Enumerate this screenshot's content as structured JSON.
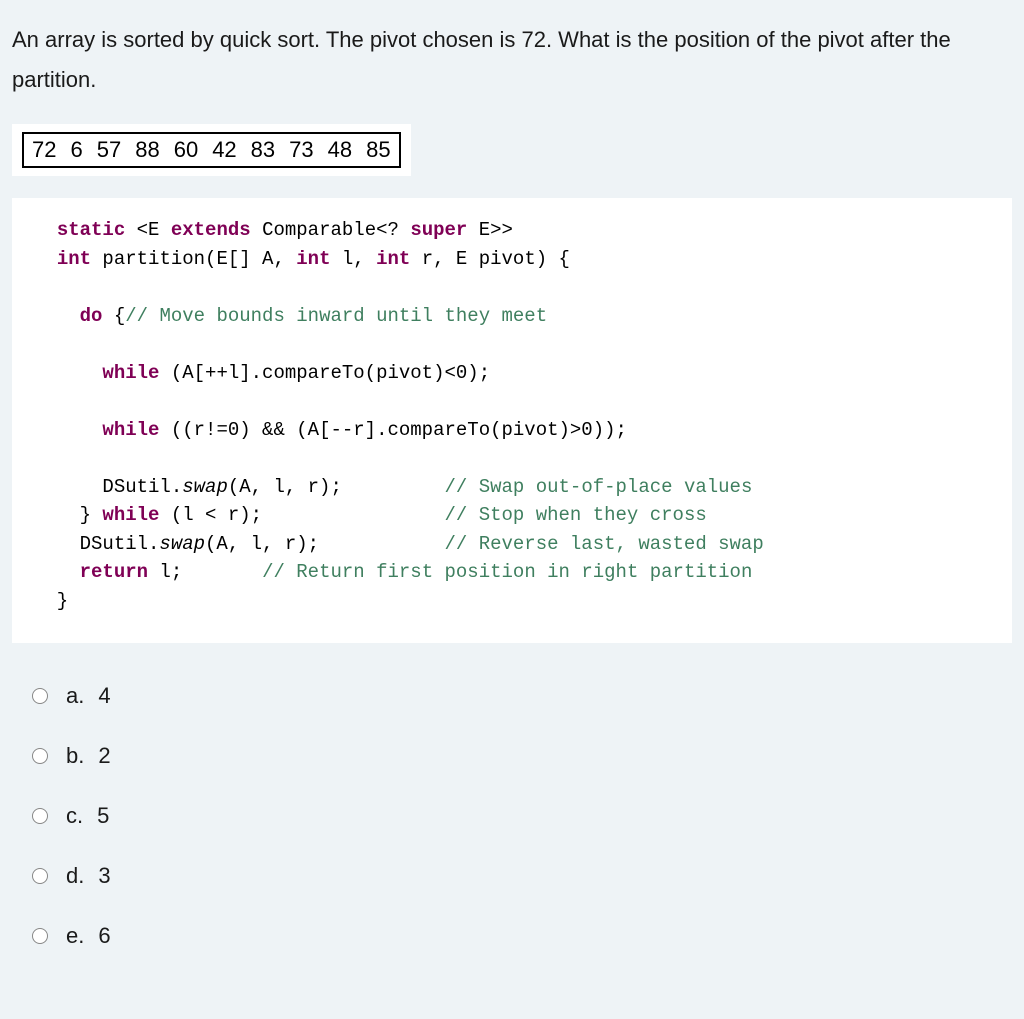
{
  "question": {
    "text": "An array is sorted by quick sort. The pivot chosen is 72. What is the position of the pivot after the partition."
  },
  "array": {
    "values": [
      "72",
      "6",
      "57",
      "88",
      "60",
      "42",
      "83",
      "73",
      "48",
      "85"
    ]
  },
  "code": {
    "line1_kw1": "static",
    "line1_generic": " <E ",
    "line1_kw2": "extends",
    "line1_rest": " Comparable<? ",
    "line1_kw3": "super",
    "line1_end": " E>>",
    "line2_kw": "int",
    "line2_rest": " partition(E[] A, ",
    "line2_kw2": "int",
    "line2_mid": " l, ",
    "line2_kw3": "int",
    "line2_end": " r, E pivot) {",
    "line4_kw": "do",
    "line4_rest": " {",
    "line4_cmt": "// Move bounds inward until they meet",
    "line6_kw": "while",
    "line6_rest": " (A[++l].compareTo(pivot)<0);",
    "line8_kw": "while",
    "line8_rest": " ((r!=0) && (A[--r].compareTo(pivot)>0));",
    "line10_call": "      DSutil.",
    "line10_mtd": "swap",
    "line10_args": "(A, l, r);",
    "line10_cmt": "// Swap out-of-place values",
    "line11_close": "    } ",
    "line11_kw": "while",
    "line11_rest": " (l < r);",
    "line11_cmt": "// Stop when they cross",
    "line12_call": "    DSutil.",
    "line12_mtd": "swap",
    "line12_args": "(A, l, r);",
    "line12_cmt": "// Reverse last, wasted swap",
    "line13_kw": "return",
    "line13_rest": " l;",
    "line13_cmt": "// Return first position in right partition",
    "line14": "  }"
  },
  "options": [
    {
      "label": "a.",
      "value": "4"
    },
    {
      "label": "b.",
      "value": "2"
    },
    {
      "label": "c.",
      "value": "5"
    },
    {
      "label": "d.",
      "value": "3"
    },
    {
      "label": "e.",
      "value": "6"
    }
  ]
}
